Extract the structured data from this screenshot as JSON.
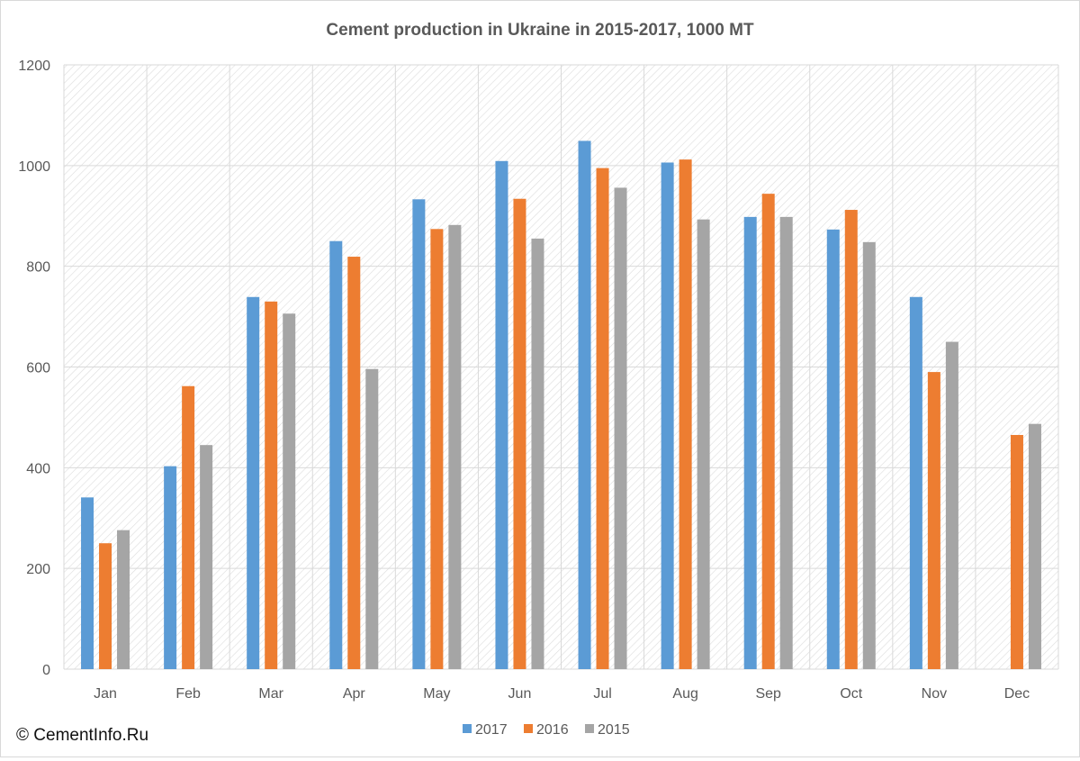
{
  "chart_data": {
    "type": "bar",
    "title": "Cement production in Ukraine in 2015-2017, 1000 MT",
    "xlabel": "",
    "ylabel": "",
    "categories": [
      "Jan",
      "Feb",
      "Mar",
      "Apr",
      "May",
      "Jun",
      "Jul",
      "Aug",
      "Sep",
      "Oct",
      "Nov",
      "Dec"
    ],
    "series": [
      {
        "name": "2017",
        "color": "#5b9bd5",
        "values": [
          341,
          403,
          739,
          850,
          933,
          1009,
          1049,
          1006,
          898,
          873,
          739,
          null
        ]
      },
      {
        "name": "2016",
        "color": "#ed7d31",
        "values": [
          250,
          562,
          730,
          819,
          874,
          934,
          995,
          1012,
          944,
          912,
          590,
          465
        ]
      },
      {
        "name": "2015",
        "color": "#a5a5a5",
        "values": [
          276,
          445,
          706,
          596,
          882,
          855,
          956,
          893,
          898,
          848,
          650,
          487
        ]
      }
    ],
    "ylim": [
      0,
      1200
    ],
    "yticks": [
      0,
      200,
      400,
      600,
      800,
      1000,
      1200
    ],
    "grid": true,
    "legend_position": "bottom"
  },
  "copyright": "© CementInfo.Ru"
}
